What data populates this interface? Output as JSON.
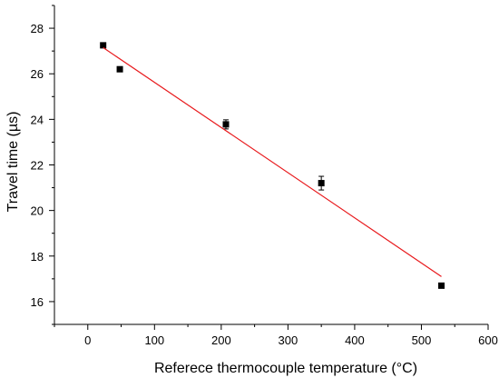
{
  "chart_data": {
    "type": "scatter",
    "title": "",
    "xlabel": "Referece thermocouple temperature (°C)",
    "ylabel": "Travel time (µs)",
    "xlim": [
      -50,
      600
    ],
    "ylim": [
      15,
      29
    ],
    "x_ticks": [
      0,
      100,
      200,
      300,
      400,
      500,
      600
    ],
    "y_ticks": [
      16,
      18,
      20,
      22,
      24,
      26,
      28
    ],
    "grid": false,
    "legend": "none",
    "series": [
      {
        "type": "scatter",
        "marker": "square",
        "color": "#000000",
        "points": [
          {
            "x": 23,
            "y": 27.25,
            "err": 0.08
          },
          {
            "x": 48,
            "y": 26.2,
            "err": 0.05
          },
          {
            "x": 207,
            "y": 23.78,
            "err": 0.2
          },
          {
            "x": 350,
            "y": 21.2,
            "err": 0.3
          },
          {
            "x": 530,
            "y": 16.7,
            "err": 0.05
          }
        ]
      },
      {
        "type": "line",
        "color": "#e8191c",
        "points": [
          {
            "x": 23,
            "y": 27.15
          },
          {
            "x": 530,
            "y": 17.1
          }
        ]
      }
    ]
  }
}
